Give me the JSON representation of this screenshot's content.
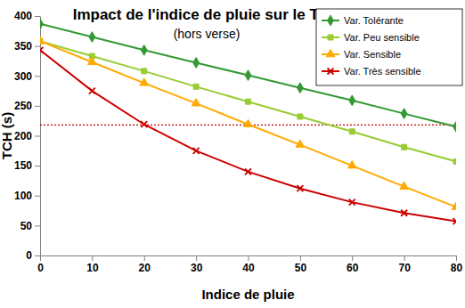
{
  "chart_data": {
    "type": "line",
    "title": "Impact de l'indice de pluie sur le TCH",
    "subtitle": "(hors verse)",
    "x_label": "Indice de pluie",
    "y_label": "TCH (s)",
    "x": [
      0,
      10,
      20,
      30,
      40,
      50,
      60,
      70,
      80
    ],
    "series": [
      {
        "name": "Var. Tolérante",
        "color": "#339933",
        "marker": "diamond",
        "values": [
          387,
          365,
          343,
          322,
          301,
          280,
          259,
          237,
          215
        ]
      },
      {
        "name": "Var. Peu sensible",
        "color": "#99cc33",
        "marker": "square",
        "values": [
          358,
          333,
          308,
          282,
          257,
          232,
          207,
          181,
          157
        ]
      },
      {
        "name": "Var. Sensible",
        "color": "#ffaa00",
        "marker": "triangle",
        "values": [
          358,
          323,
          288,
          254,
          219,
          185,
          150,
          115,
          81
        ]
      },
      {
        "name": "Var. Très sensible",
        "color": "#cc0000",
        "marker": "x",
        "values": [
          343,
          275,
          219,
          175,
          140,
          112,
          89,
          71,
          57
        ]
      }
    ],
    "reference_line": {
      "value": 218,
      "color": "#c00000",
      "line_style": "dotted"
    },
    "xlim": [
      0,
      80
    ],
    "xticks": [
      0,
      10,
      20,
      30,
      40,
      50,
      60,
      70,
      80
    ],
    "ylim": [
      0,
      400
    ],
    "yticks": [
      0,
      50,
      100,
      150,
      200,
      250,
      300,
      350,
      400
    ],
    "grid": false,
    "legend": "top-right"
  }
}
